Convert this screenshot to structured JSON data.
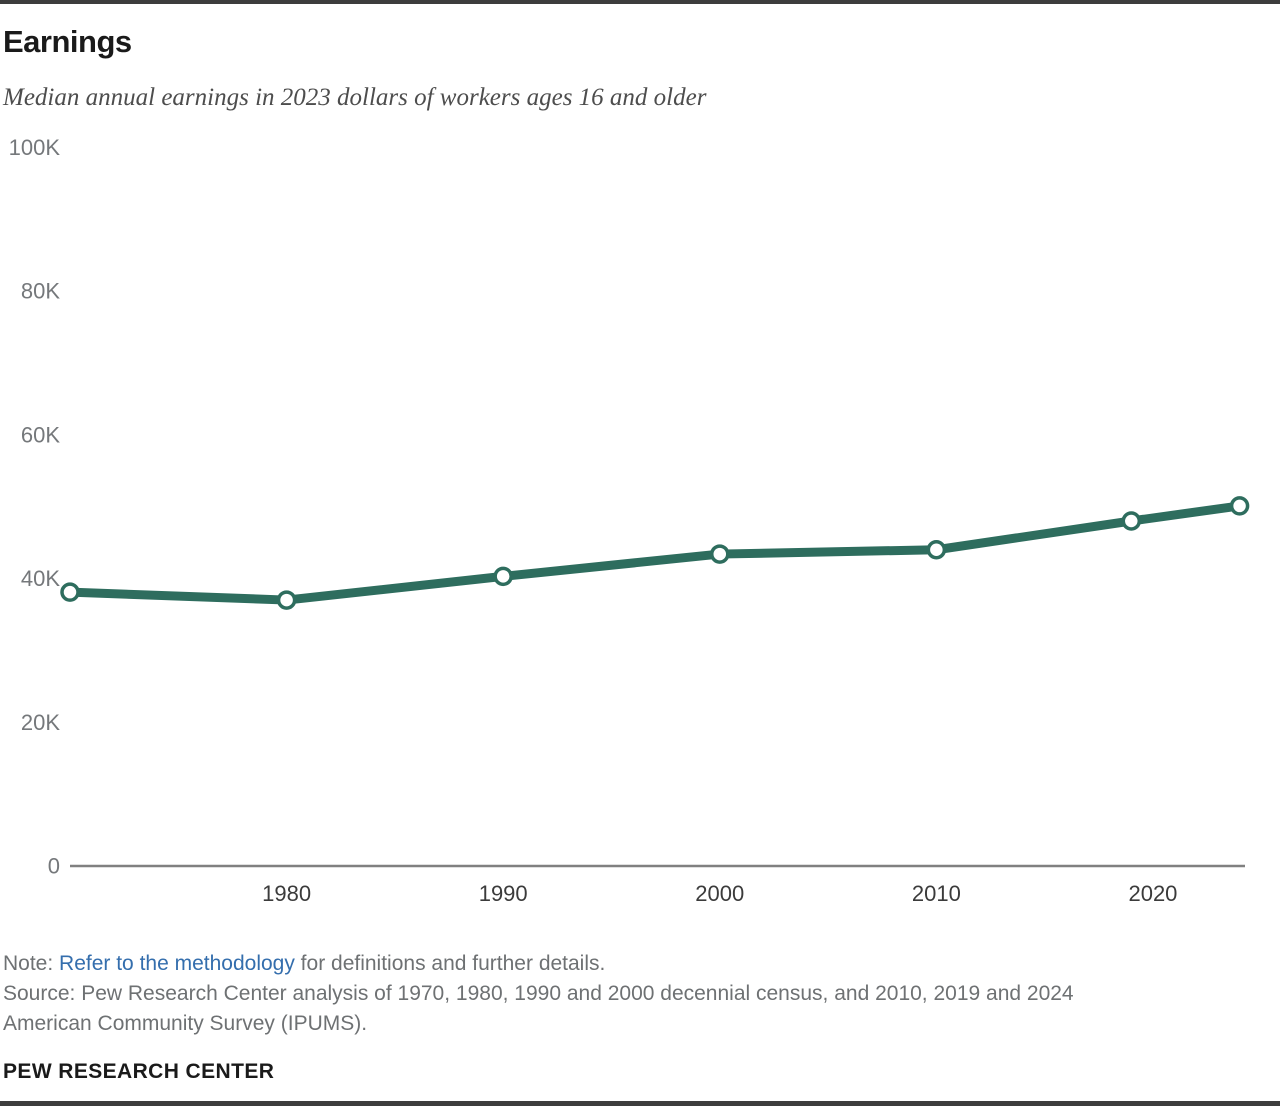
{
  "page": {
    "title": "Earnings",
    "subtitle": "Median annual earnings in 2023 dollars of workers ages 16 and older",
    "footer": "PEW RESEARCH CENTER"
  },
  "notes": {
    "note_prefix": "Note: ",
    "note_link": "Refer to the methodology",
    "note_suffix": " for definitions and further details.",
    "source_line1": "Source: Pew Research Center analysis of 1970, 1980, 1990 and 2000 decennial census, and 2010, 2019 and 2024",
    "source_line2": "American Community Survey (IPUMS)."
  },
  "colors": {
    "line_green": "#2e6d5e",
    "marker_fill": "#ffffff",
    "link_blue": "#346ead",
    "axis_gray": "#808080",
    "ytick_gray": "#75787b",
    "xtick_gray": "#3b3b3b",
    "rule_charcoal": "#3d3d3d"
  },
  "chart_data": {
    "type": "line",
    "title": "Earnings",
    "subtitle": "Median annual earnings in 2023 dollars of workers ages 16 and older",
    "x": [
      1970,
      1980,
      1990,
      2000,
      2010,
      2019,
      2024
    ],
    "series": [
      {
        "name": "Median annual earnings (2023 dollars)",
        "values": [
          38100,
          37000,
          40300,
          43400,
          44000,
          48000,
          50100
        ]
      }
    ],
    "xlabel": "",
    "ylabel": "",
    "xlim": [
      1970,
      2024.25
    ],
    "ylim": [
      0,
      100000
    ],
    "yticks": [
      {
        "value": 0,
        "label": "0"
      },
      {
        "value": 20000,
        "label": "20K"
      },
      {
        "value": 40000,
        "label": "40K"
      },
      {
        "value": 60000,
        "label": "60K"
      },
      {
        "value": 80000,
        "label": "80K"
      },
      {
        "value": 100000,
        "label": "100K"
      }
    ],
    "xticks": [
      {
        "value": 1980,
        "label": "1980"
      },
      {
        "value": 1990,
        "label": "1990"
      },
      {
        "value": 2000,
        "label": "2000"
      },
      {
        "value": 2010,
        "label": "2010"
      },
      {
        "value": 2020,
        "label": "2020"
      }
    ],
    "grid": false,
    "legend": "none",
    "marker": "open-circle",
    "line_width": 9
  }
}
